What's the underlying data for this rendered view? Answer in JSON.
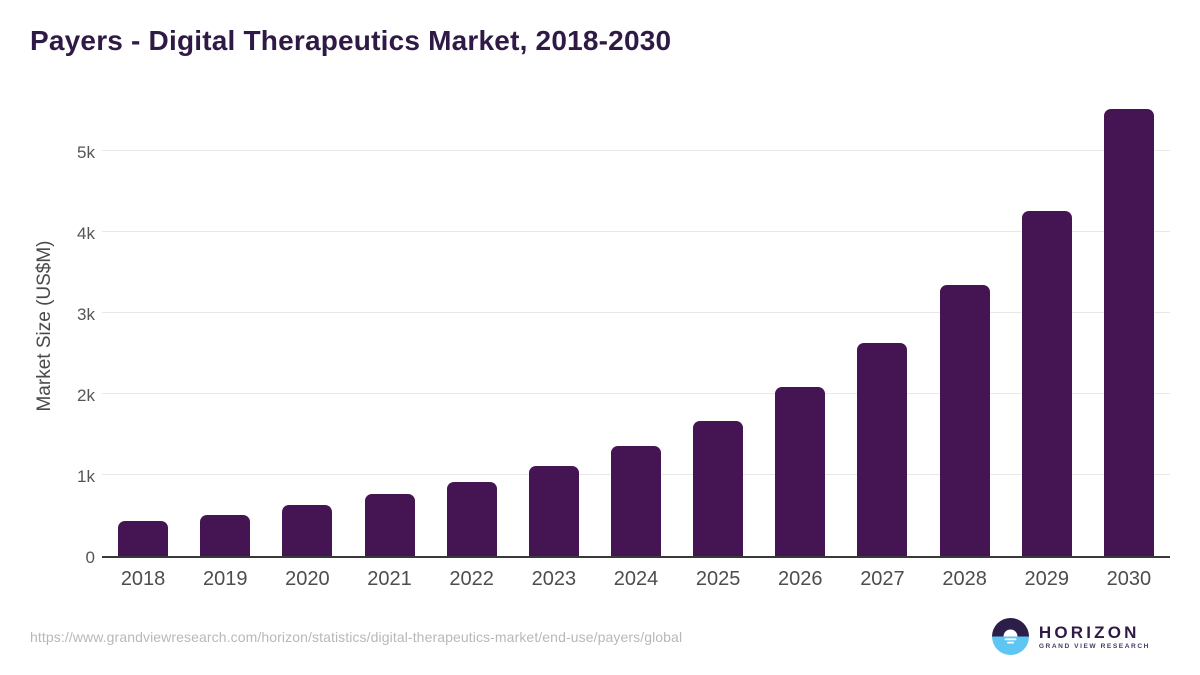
{
  "title": "Payers - Digital Therapeutics Market, 2018-2030",
  "chart_data": {
    "type": "bar",
    "title": "Payers - Digital Therapeutics Market, 2018-2030",
    "categories": [
      "2018",
      "2019",
      "2020",
      "2021",
      "2022",
      "2023",
      "2024",
      "2025",
      "2026",
      "2027",
      "2028",
      "2029",
      "2030"
    ],
    "values": [
      430,
      510,
      630,
      760,
      910,
      1110,
      1360,
      1670,
      2090,
      2630,
      3340,
      4260,
      5510
    ],
    "xlabel": "",
    "ylabel": "Market Size (US$M)",
    "ylim": [
      0,
      5710
    ],
    "yticks": [
      {
        "value": 0,
        "label": "0"
      },
      {
        "value": 1000,
        "label": "1k"
      },
      {
        "value": 2000,
        "label": "2k"
      },
      {
        "value": 3000,
        "label": "3k"
      },
      {
        "value": 4000,
        "label": "4k"
      },
      {
        "value": 5000,
        "label": "5k"
      }
    ],
    "grid": true,
    "legend": "none",
    "bar_color": "#451452"
  },
  "colors": {
    "title": "#2f1a45",
    "bar": "#451452",
    "axis_line": "#3a3a3a",
    "gridline": "#e8e8e8",
    "tick_text": "#4d4d4d",
    "url_text": "#b8b8b8",
    "logo_purple": "#2d1d49",
    "logo_blue": "#5ec6f2"
  },
  "footer": {
    "source_url": "https://www.grandviewresearch.com/horizon/statistics/digital-therapeutics-market/end-use/payers/global",
    "logo": {
      "brand": "HORIZON",
      "sub_brand": "GRAND VIEW RESEARCH"
    }
  }
}
